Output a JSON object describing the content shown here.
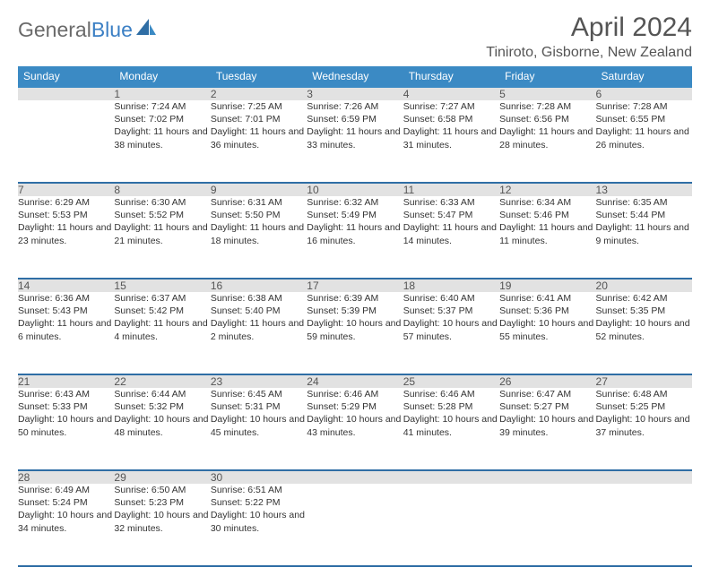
{
  "brand": {
    "part1": "General",
    "part2": "Blue"
  },
  "title": "April 2024",
  "location": "Tiniroto, Gisborne, New Zealand",
  "colors": {
    "header_bg": "#3b8ac4",
    "header_text": "#ffffff",
    "rule": "#2f6ea5",
    "daynum_bg": "#e2e2e2",
    "body_text": "#333333",
    "title_text": "#555555"
  },
  "day_headers": [
    "Sunday",
    "Monday",
    "Tuesday",
    "Wednesday",
    "Thursday",
    "Friday",
    "Saturday"
  ],
  "weeks": [
    [
      {
        "num": "",
        "sunrise": "",
        "sunset": "",
        "daylight": ""
      },
      {
        "num": "1",
        "sunrise": "Sunrise: 7:24 AM",
        "sunset": "Sunset: 7:02 PM",
        "daylight": "Daylight: 11 hours and 38 minutes."
      },
      {
        "num": "2",
        "sunrise": "Sunrise: 7:25 AM",
        "sunset": "Sunset: 7:01 PM",
        "daylight": "Daylight: 11 hours and 36 minutes."
      },
      {
        "num": "3",
        "sunrise": "Sunrise: 7:26 AM",
        "sunset": "Sunset: 6:59 PM",
        "daylight": "Daylight: 11 hours and 33 minutes."
      },
      {
        "num": "4",
        "sunrise": "Sunrise: 7:27 AM",
        "sunset": "Sunset: 6:58 PM",
        "daylight": "Daylight: 11 hours and 31 minutes."
      },
      {
        "num": "5",
        "sunrise": "Sunrise: 7:28 AM",
        "sunset": "Sunset: 6:56 PM",
        "daylight": "Daylight: 11 hours and 28 minutes."
      },
      {
        "num": "6",
        "sunrise": "Sunrise: 7:28 AM",
        "sunset": "Sunset: 6:55 PM",
        "daylight": "Daylight: 11 hours and 26 minutes."
      }
    ],
    [
      {
        "num": "7",
        "sunrise": "Sunrise: 6:29 AM",
        "sunset": "Sunset: 5:53 PM",
        "daylight": "Daylight: 11 hours and 23 minutes."
      },
      {
        "num": "8",
        "sunrise": "Sunrise: 6:30 AM",
        "sunset": "Sunset: 5:52 PM",
        "daylight": "Daylight: 11 hours and 21 minutes."
      },
      {
        "num": "9",
        "sunrise": "Sunrise: 6:31 AM",
        "sunset": "Sunset: 5:50 PM",
        "daylight": "Daylight: 11 hours and 18 minutes."
      },
      {
        "num": "10",
        "sunrise": "Sunrise: 6:32 AM",
        "sunset": "Sunset: 5:49 PM",
        "daylight": "Daylight: 11 hours and 16 minutes."
      },
      {
        "num": "11",
        "sunrise": "Sunrise: 6:33 AM",
        "sunset": "Sunset: 5:47 PM",
        "daylight": "Daylight: 11 hours and 14 minutes."
      },
      {
        "num": "12",
        "sunrise": "Sunrise: 6:34 AM",
        "sunset": "Sunset: 5:46 PM",
        "daylight": "Daylight: 11 hours and 11 minutes."
      },
      {
        "num": "13",
        "sunrise": "Sunrise: 6:35 AM",
        "sunset": "Sunset: 5:44 PM",
        "daylight": "Daylight: 11 hours and 9 minutes."
      }
    ],
    [
      {
        "num": "14",
        "sunrise": "Sunrise: 6:36 AM",
        "sunset": "Sunset: 5:43 PM",
        "daylight": "Daylight: 11 hours and 6 minutes."
      },
      {
        "num": "15",
        "sunrise": "Sunrise: 6:37 AM",
        "sunset": "Sunset: 5:42 PM",
        "daylight": "Daylight: 11 hours and 4 minutes."
      },
      {
        "num": "16",
        "sunrise": "Sunrise: 6:38 AM",
        "sunset": "Sunset: 5:40 PM",
        "daylight": "Daylight: 11 hours and 2 minutes."
      },
      {
        "num": "17",
        "sunrise": "Sunrise: 6:39 AM",
        "sunset": "Sunset: 5:39 PM",
        "daylight": "Daylight: 10 hours and 59 minutes."
      },
      {
        "num": "18",
        "sunrise": "Sunrise: 6:40 AM",
        "sunset": "Sunset: 5:37 PM",
        "daylight": "Daylight: 10 hours and 57 minutes."
      },
      {
        "num": "19",
        "sunrise": "Sunrise: 6:41 AM",
        "sunset": "Sunset: 5:36 PM",
        "daylight": "Daylight: 10 hours and 55 minutes."
      },
      {
        "num": "20",
        "sunrise": "Sunrise: 6:42 AM",
        "sunset": "Sunset: 5:35 PM",
        "daylight": "Daylight: 10 hours and 52 minutes."
      }
    ],
    [
      {
        "num": "21",
        "sunrise": "Sunrise: 6:43 AM",
        "sunset": "Sunset: 5:33 PM",
        "daylight": "Daylight: 10 hours and 50 minutes."
      },
      {
        "num": "22",
        "sunrise": "Sunrise: 6:44 AM",
        "sunset": "Sunset: 5:32 PM",
        "daylight": "Daylight: 10 hours and 48 minutes."
      },
      {
        "num": "23",
        "sunrise": "Sunrise: 6:45 AM",
        "sunset": "Sunset: 5:31 PM",
        "daylight": "Daylight: 10 hours and 45 minutes."
      },
      {
        "num": "24",
        "sunrise": "Sunrise: 6:46 AM",
        "sunset": "Sunset: 5:29 PM",
        "daylight": "Daylight: 10 hours and 43 minutes."
      },
      {
        "num": "25",
        "sunrise": "Sunrise: 6:46 AM",
        "sunset": "Sunset: 5:28 PM",
        "daylight": "Daylight: 10 hours and 41 minutes."
      },
      {
        "num": "26",
        "sunrise": "Sunrise: 6:47 AM",
        "sunset": "Sunset: 5:27 PM",
        "daylight": "Daylight: 10 hours and 39 minutes."
      },
      {
        "num": "27",
        "sunrise": "Sunrise: 6:48 AM",
        "sunset": "Sunset: 5:25 PM",
        "daylight": "Daylight: 10 hours and 37 minutes."
      }
    ],
    [
      {
        "num": "28",
        "sunrise": "Sunrise: 6:49 AM",
        "sunset": "Sunset: 5:24 PM",
        "daylight": "Daylight: 10 hours and 34 minutes."
      },
      {
        "num": "29",
        "sunrise": "Sunrise: 6:50 AM",
        "sunset": "Sunset: 5:23 PM",
        "daylight": "Daylight: 10 hours and 32 minutes."
      },
      {
        "num": "30",
        "sunrise": "Sunrise: 6:51 AM",
        "sunset": "Sunset: 5:22 PM",
        "daylight": "Daylight: 10 hours and 30 minutes."
      },
      {
        "num": "",
        "sunrise": "",
        "sunset": "",
        "daylight": ""
      },
      {
        "num": "",
        "sunrise": "",
        "sunset": "",
        "daylight": ""
      },
      {
        "num": "",
        "sunrise": "",
        "sunset": "",
        "daylight": ""
      },
      {
        "num": "",
        "sunrise": "",
        "sunset": "",
        "daylight": ""
      }
    ]
  ]
}
